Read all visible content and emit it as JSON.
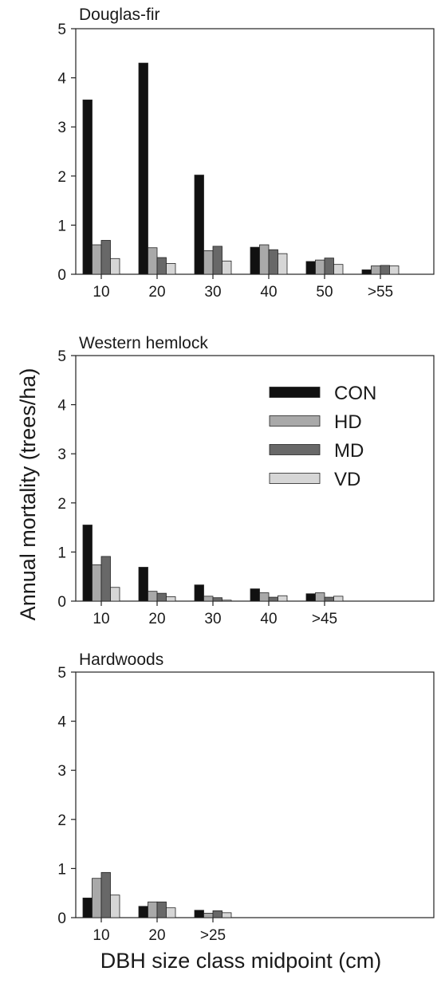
{
  "chart_data": {
    "type": "bar",
    "ylabel": "Annual mortality (trees/ha)",
    "xlabel": "DBH size class midpoint (cm)",
    "ylim": [
      0,
      5
    ],
    "yticks": [
      "0",
      "1",
      "2",
      "3",
      "4",
      "5"
    ],
    "grid": false,
    "legend": {
      "placement": "top-right of second panel",
      "entries": [
        "CON",
        "HD",
        "MD",
        "VD"
      ]
    },
    "series_colors": {
      "CON": "#111111",
      "HD": "#a9a9a9",
      "MD": "#686868",
      "VD": "#d6d6d6"
    },
    "panels": [
      {
        "title": "Douglas-fir",
        "categories": [
          "10",
          "20",
          "30",
          "40",
          "50",
          ">55"
        ],
        "series": [
          {
            "name": "CON",
            "values": [
              3.55,
              4.3,
              2.02,
              0.55,
              0.26,
              0.09
            ]
          },
          {
            "name": "HD",
            "values": [
              0.6,
              0.54,
              0.48,
              0.6,
              0.29,
              0.17
            ]
          },
          {
            "name": "MD",
            "values": [
              0.69,
              0.34,
              0.57,
              0.5,
              0.33,
              0.18
            ]
          },
          {
            "name": "VD",
            "values": [
              0.32,
              0.22,
              0.27,
              0.42,
              0.2,
              0.17
            ]
          }
        ]
      },
      {
        "title": "Western hemlock",
        "categories": [
          "10",
          "20",
          "30",
          "40",
          ">45"
        ],
        "series": [
          {
            "name": "CON",
            "values": [
              1.55,
              0.69,
              0.33,
              0.25,
              0.15
            ]
          },
          {
            "name": "HD",
            "values": [
              0.74,
              0.2,
              0.1,
              0.17,
              0.17
            ]
          },
          {
            "name": "MD",
            "values": [
              0.91,
              0.16,
              0.07,
              0.08,
              0.08
            ]
          },
          {
            "name": "VD",
            "values": [
              0.28,
              0.09,
              0.02,
              0.11,
              0.1
            ]
          }
        ]
      },
      {
        "title": "Hardwoods",
        "categories": [
          "10",
          "20",
          ">25"
        ],
        "series": [
          {
            "name": "CON",
            "values": [
              0.4,
              0.23,
              0.15
            ]
          },
          {
            "name": "HD",
            "values": [
              0.8,
              0.32,
              0.09
            ]
          },
          {
            "name": "MD",
            "values": [
              0.92,
              0.32,
              0.14
            ]
          },
          {
            "name": "VD",
            "values": [
              0.46,
              0.2,
              0.1
            ]
          }
        ]
      }
    ]
  }
}
